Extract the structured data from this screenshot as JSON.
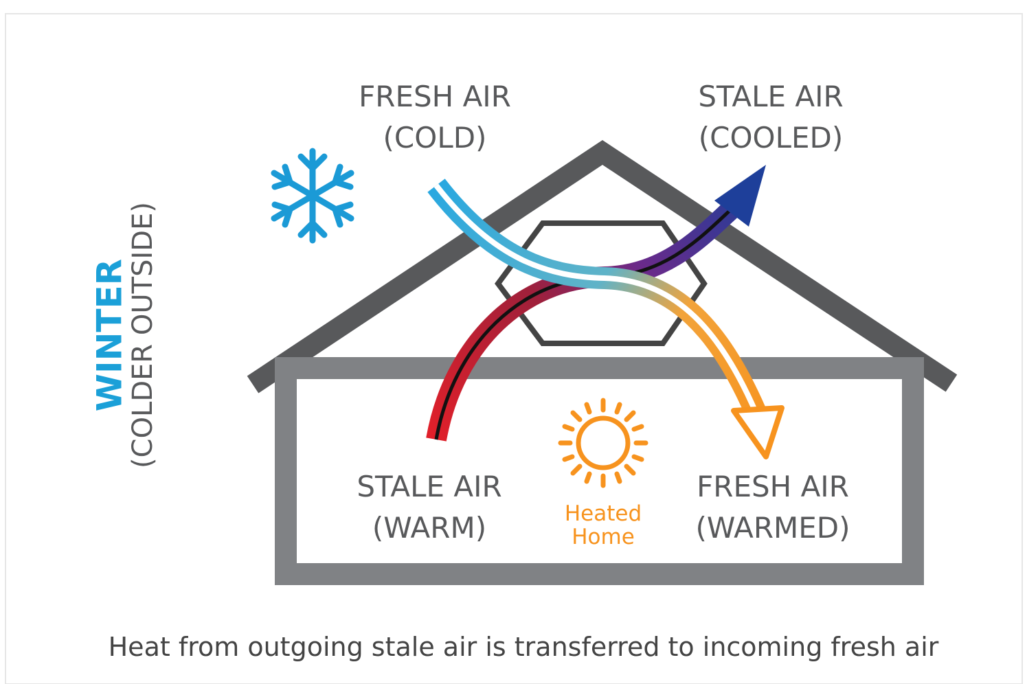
{
  "side_label": {
    "title": "WINTER",
    "subtitle": "(COLDER OUTSIDE)"
  },
  "labels": [
    {
      "line1": "FRESH AIR",
      "line2": "(COLD)"
    },
    {
      "line1": "STALE AIR",
      "line2": "(COOLED)"
    },
    {
      "line1": "STALE AIR",
      "line2": "(WARM)"
    },
    {
      "line1": "FRESH AIR",
      "line2": "(WARMED)"
    }
  ],
  "center": {
    "line1": "Heated",
    "line2": "Home"
  },
  "caption": "Heat from outgoing stale air is transferred to incoming fresh air"
}
